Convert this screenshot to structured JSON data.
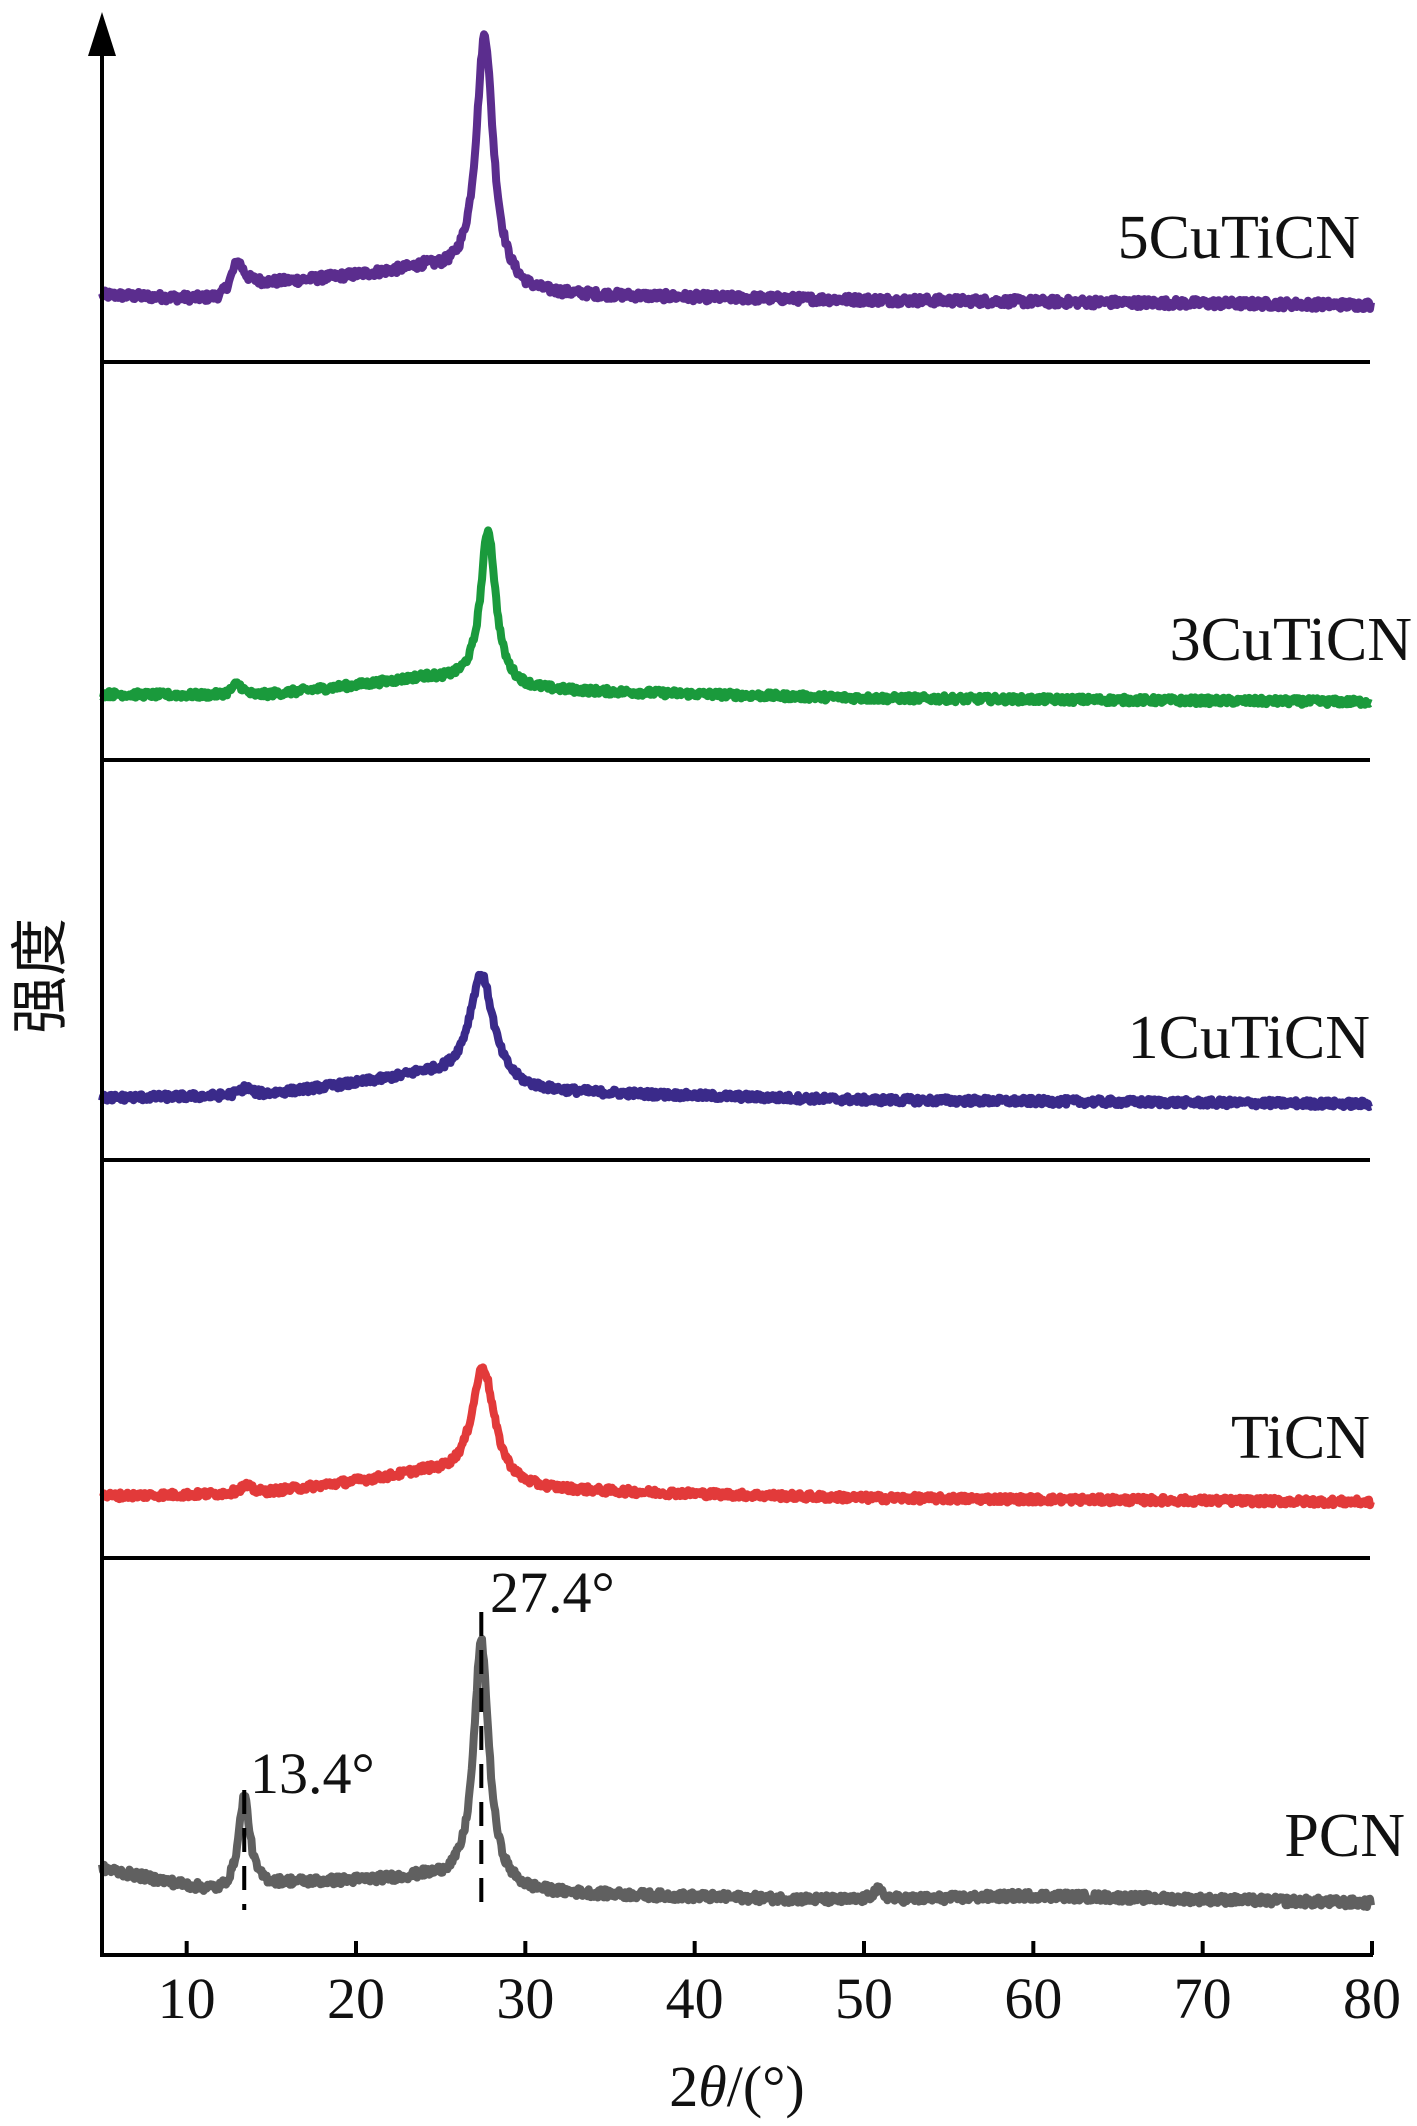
{
  "chart_data": {
    "type": "line",
    "layout": "stacked",
    "xlabel_main": "2",
    "xlabel_symbol": "θ",
    "xlabel_unit": "/(°)",
    "ylabel": "强度",
    "xlim": [
      5,
      80
    ],
    "x_ticks": [
      10,
      20,
      30,
      40,
      50,
      60,
      70,
      80
    ],
    "x_tick_labels": [
      "10",
      "20",
      "30",
      "40",
      "50",
      "60",
      "70",
      "80"
    ],
    "grid": false,
    "series": [
      {
        "name": "5CuTiCN",
        "color": "#5b2d8e",
        "peaks": [
          {
            "x": 13.0,
            "height": 0.12,
            "width": 0.7
          },
          {
            "x": 27.6,
            "height": 1.0,
            "width": 0.9
          }
        ],
        "baseline": [
          [
            5,
            0.04
          ],
          [
            12,
            0.02
          ],
          [
            14,
            0.08
          ],
          [
            24,
            0.14
          ],
          [
            30,
            0.04
          ],
          [
            50,
            0.02
          ],
          [
            80,
            0.0
          ]
        ]
      },
      {
        "name": "3CuTiCN",
        "color": "#1a9a3c",
        "peaks": [
          {
            "x": 13.0,
            "height": 0.06,
            "width": 0.6
          },
          {
            "x": 27.8,
            "height": 0.8,
            "width": 0.8
          }
        ],
        "baseline": [
          [
            5,
            0.04
          ],
          [
            14,
            0.03
          ],
          [
            24,
            0.12
          ],
          [
            30,
            0.06
          ],
          [
            50,
            0.02
          ],
          [
            80,
            0.0
          ]
        ]
      },
      {
        "name": "1CuTiCN",
        "color": "#3a2a8a",
        "peaks": [
          {
            "x": 13.5,
            "height": 0.04,
            "width": 0.7
          },
          {
            "x": 27.4,
            "height": 0.55,
            "width": 1.3
          }
        ],
        "baseline": [
          [
            5,
            0.03
          ],
          [
            14,
            0.04
          ],
          [
            24,
            0.14
          ],
          [
            30,
            0.06
          ],
          [
            50,
            0.02
          ],
          [
            80,
            0.0
          ]
        ]
      },
      {
        "name": "TiCN",
        "color": "#e23a3a",
        "peaks": [
          {
            "x": 13.5,
            "height": 0.04,
            "width": 0.7
          },
          {
            "x": 27.5,
            "height": 0.58,
            "width": 1.2
          }
        ],
        "baseline": [
          [
            5,
            0.03
          ],
          [
            14,
            0.04
          ],
          [
            24,
            0.14
          ],
          [
            30,
            0.06
          ],
          [
            50,
            0.02
          ],
          [
            80,
            0.0
          ]
        ]
      },
      {
        "name": "PCN",
        "color": "#606060",
        "peaks": [
          {
            "x": 13.4,
            "height": 0.38,
            "width": 0.6
          },
          {
            "x": 27.4,
            "height": 1.0,
            "width": 0.8
          },
          {
            "x": 50.8,
            "height": 0.04,
            "width": 0.6
          }
        ],
        "baseline": [
          [
            5,
            0.14
          ],
          [
            12,
            0.04
          ],
          [
            16,
            0.08
          ],
          [
            24,
            0.1
          ],
          [
            30,
            0.04
          ],
          [
            50,
            0.01
          ],
          [
            60,
            0.03
          ],
          [
            80,
            0.0
          ]
        ]
      }
    ],
    "annotations": [
      {
        "text": "13.4°",
        "x": 13.4,
        "series": "PCN"
      },
      {
        "text": "27.4°",
        "x": 27.4,
        "series": "PCN"
      }
    ]
  }
}
